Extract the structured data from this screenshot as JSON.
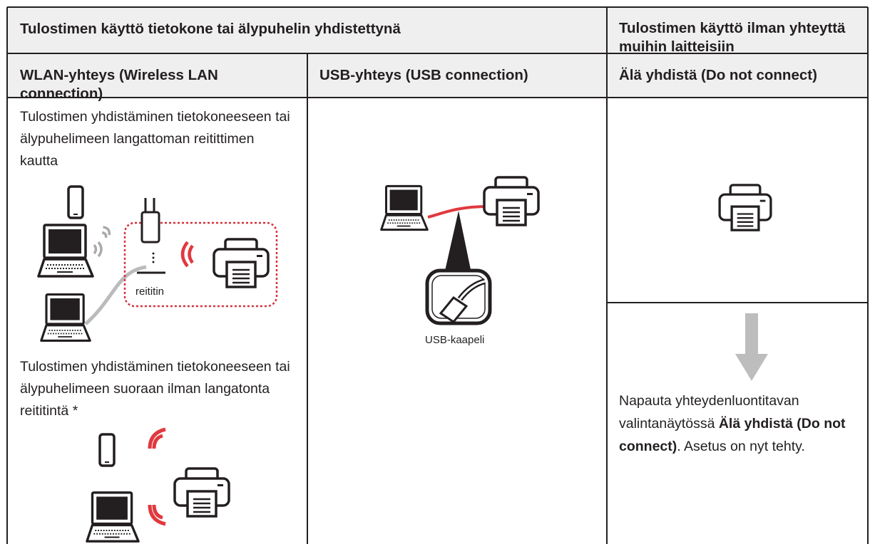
{
  "header": {
    "left": "Tulostimen käyttö tietokone tai älypuhelin yhdistettynä",
    "right": "Tulostimen käyttö ilman yhteyttä muihin laitteisiin"
  },
  "columns": [
    {
      "title": "WLAN-yhteys (Wireless LAN connection)",
      "router_text": "Tulostimen yhdistäminen tietokoneeseen tai älypuhelimeen langattoman reitittimen kautta",
      "router_label": "reititin",
      "direct_text": "Tulostimen yhdistäminen tietokoneeseen tai älypuhelimeen suoraan ilman langatonta reititintä *"
    },
    {
      "title": "USB-yhteys (USB connection)",
      "cable_label": "USB-kaapeli"
    },
    {
      "title": "Älä yhdistä (Do not connect)",
      "instruction": {
        "before": "Napauta yhteydenluontitavan valintanäytössä ",
        "bold": "Älä yhdistä (Do not connect)",
        "after": ". Asetus on nyt tehty."
      }
    }
  ]
}
